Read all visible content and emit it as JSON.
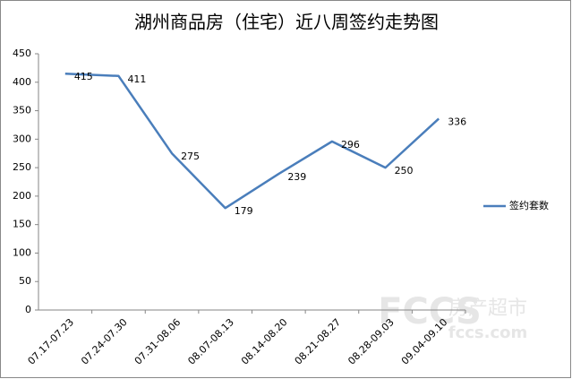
{
  "chart_data": {
    "type": "line",
    "title": "湖州商品房（住宅）近八周签约走势图",
    "categories": [
      "07.17-07.23",
      "07.24-07.30",
      "07.31-08.06",
      "08.07-08.13",
      "08.14-08.20",
      "08.21-08.27",
      "08.28-09.03",
      "09.04-09.10"
    ],
    "series": [
      {
        "name": "签约套数",
        "color": "#4a7ebb",
        "values": [
          415,
          411,
          275,
          179,
          239,
          296,
          250,
          336
        ]
      }
    ],
    "ylim": [
      0,
      450
    ],
    "yticks": [
      0,
      50,
      100,
      150,
      200,
      250,
      300,
      350,
      400,
      450
    ],
    "grid": false,
    "legend": "right",
    "watermark": {
      "logo": "FCCS",
      "name": "房产超市",
      "site": "fccs.com"
    }
  }
}
